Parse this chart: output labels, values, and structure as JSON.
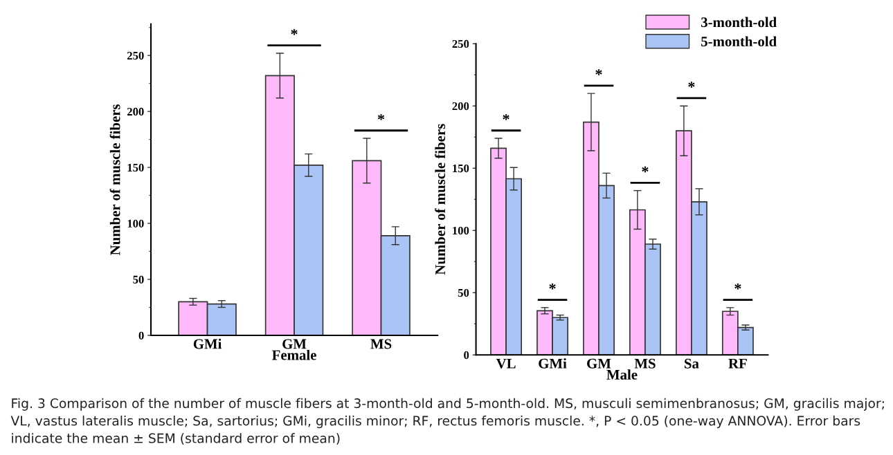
{
  "chart_data": [
    {
      "type": "bar",
      "xlabel": "Female",
      "ylabel": "Number of muscle fibers",
      "categories": [
        "GMi",
        "GM",
        "MS"
      ],
      "series": [
        {
          "color": "#fdb9f9",
          "values": [
            30,
            232,
            156
          ],
          "errors": [
            3,
            20,
            20
          ]
        },
        {
          "color": "#a9c4f5",
          "values": [
            28,
            152,
            89
          ],
          "errors": [
            3,
            10,
            8
          ]
        }
      ],
      "ylim": [
        0,
        278
      ],
      "yticks": [
        0,
        50,
        100,
        150,
        200,
        250
      ],
      "grid": false,
      "legend": false,
      "annotations": [
        "*",
        "*"
      ]
    },
    {
      "type": "bar",
      "xlabel": "Male",
      "ylabel": "Number of muscle fibers",
      "categories": [
        "VL",
        "GMi",
        "GM",
        "MS",
        "Sa",
        "RF"
      ],
      "series": [
        {
          "name": "3-month-old",
          "color": "#fdb9f9",
          "values": [
            166,
            35.5,
            187,
            116.5,
            180,
            35
          ],
          "errors": [
            8,
            2.5,
            23,
            15.5,
            20,
            3
          ]
        },
        {
          "name": "5-month-old",
          "color": "#a9c4f5",
          "values": [
            141.5,
            30,
            136,
            89,
            123,
            22
          ],
          "errors": [
            9,
            2,
            10,
            4,
            10.5,
            2
          ]
        }
      ],
      "ylim": [
        0,
        250
      ],
      "yticks": [
        0,
        50,
        100,
        150,
        200,
        250
      ],
      "grid": false,
      "legend": "top right",
      "annotations": [
        "*",
        "*",
        "*",
        "*",
        "*",
        "*",
        "Fig. 3 Comparison of the number of muscle fibers at 3-month-old and 5-month-old. MS, musculi semimenbranosus; GM, gracilis major; VL, vastus lateralis muscle; Sa, sartorius; GMi, gracilis minor; RF, rectus femoris muscle. *, P < 0.05 (one-way ANNOVA). Error bars indicate the mean ± SEM (standard error of mean)"
      ]
    }
  ]
}
